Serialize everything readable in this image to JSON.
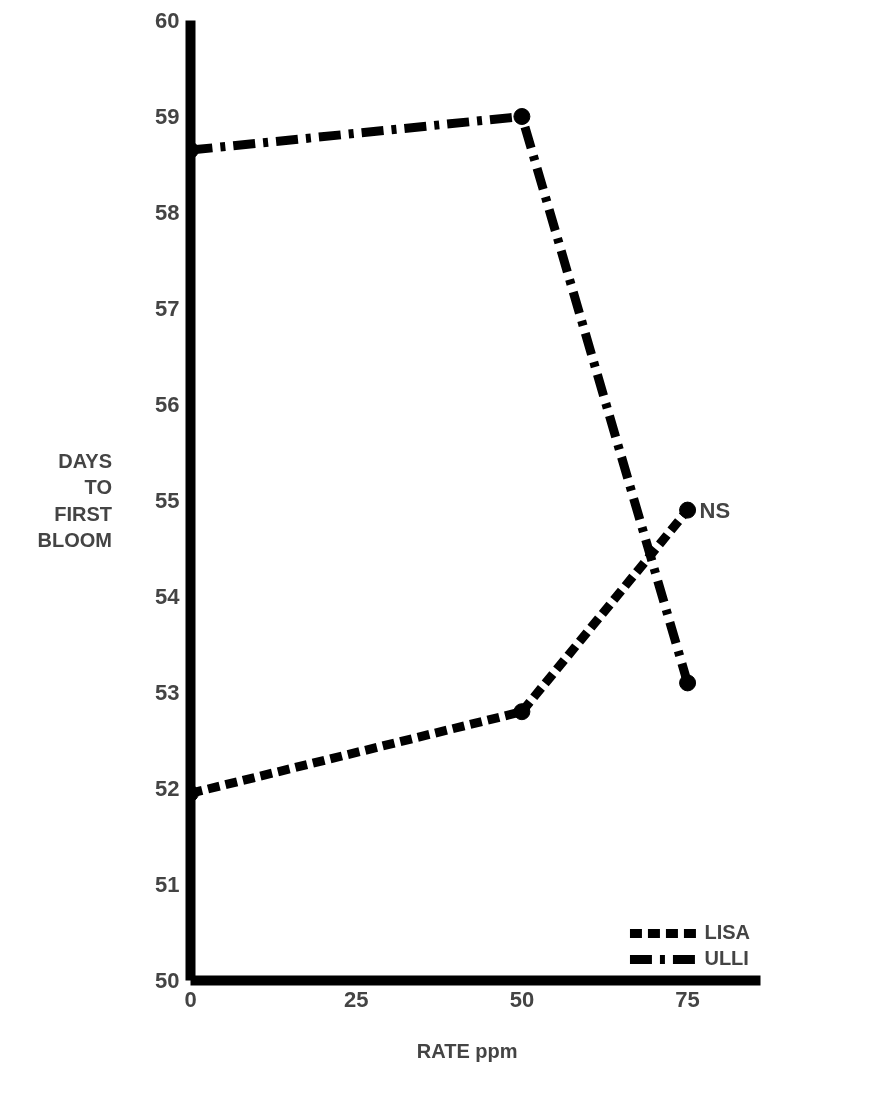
{
  "chart_data": {
    "type": "line",
    "xlabel": "RATE    ppm",
    "ylabel": "DAYS TO FIRST BLOOM",
    "x": [
      0,
      50,
      75
    ],
    "xlim": [
      0,
      86
    ],
    "xticks": [
      0,
      25,
      50,
      75
    ],
    "ylim": [
      50,
      60
    ],
    "yticks": [
      50,
      51,
      52,
      53,
      54,
      55,
      56,
      57,
      58,
      59,
      60
    ],
    "series": [
      {
        "name": "LISA",
        "color": "#000000",
        "values": [
          51.95,
          52.8,
          54.9
        ],
        "line_style": "dashed"
      },
      {
        "name": "ULLI",
        "color": "#000000",
        "values": [
          58.65,
          59.0,
          53.1
        ],
        "line_style": "dashdot"
      }
    ],
    "annotations": [
      {
        "text": "NS",
        "x": 75,
        "y": 54.9
      }
    ],
    "marker": "circle",
    "legend": "bottom right",
    "grid": false
  }
}
